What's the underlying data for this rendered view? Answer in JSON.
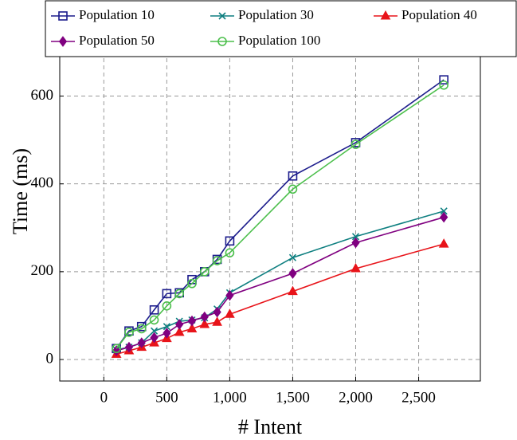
{
  "chart_data": {
    "type": "line",
    "x_label": "# Intent",
    "y_label": "Time (ms)",
    "x": [
      100,
      200,
      300,
      400,
      500,
      600,
      700,
      800,
      900,
      1000,
      1500,
      2000,
      2700
    ],
    "series": [
      {
        "name": "Population 10",
        "color": "#1c1c8c",
        "marker": "square",
        "values": [
          25,
          65,
          75,
          113,
          150,
          152,
          182,
          200,
          228,
          270,
          418,
          494,
          637
        ]
      },
      {
        "name": "Population 30",
        "color": "#0e7f80",
        "marker": "cross",
        "values": [
          22,
          28,
          38,
          65,
          75,
          87,
          90,
          95,
          115,
          152,
          232,
          280,
          338
        ]
      },
      {
        "name": "Population 40",
        "color": "#e8141a",
        "marker": "triangle",
        "values": [
          12,
          20,
          28,
          38,
          48,
          62,
          70,
          80,
          85,
          103,
          155,
          207,
          263
        ]
      },
      {
        "name": "Population 50",
        "color": "#800080",
        "marker": "diamond",
        "values": [
          20,
          28,
          38,
          50,
          60,
          80,
          88,
          97,
          108,
          146,
          196,
          266,
          324
        ]
      },
      {
        "name": "Population 100",
        "color": "#4cbf4c",
        "marker": "circle",
        "values": [
          25,
          62,
          70,
          90,
          122,
          150,
          173,
          200,
          225,
          243,
          388,
          490,
          625
        ]
      }
    ],
    "xlim": [
      -350,
      2990
    ],
    "ylim": [
      -49,
      817
    ],
    "xticks": [
      0,
      500,
      {
        "value": 1000,
        "label": "1,000"
      },
      {
        "value": 1500,
        "label": "1,500"
      },
      {
        "value": 2000,
        "label": "2,000"
      },
      {
        "value": 2500,
        "label": "2,500"
      }
    ],
    "yticks": [
      0,
      200,
      400,
      600
    ],
    "grid": true,
    "legend": "top"
  }
}
